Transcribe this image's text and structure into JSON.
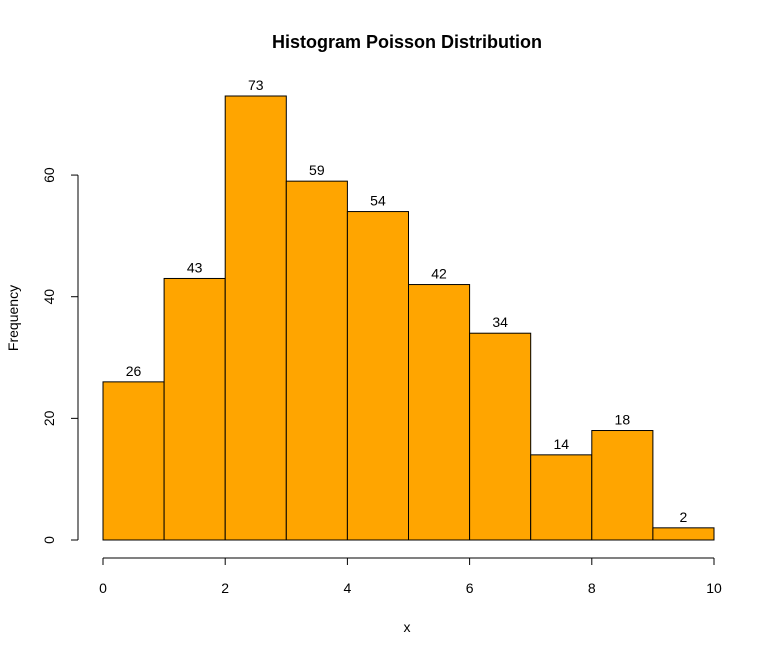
{
  "chart_data": {
    "type": "bar",
    "title": "Histogram Poisson Distribution",
    "xlabel": "x",
    "ylabel": "Frequency",
    "bins": [
      {
        "start": 0,
        "end": 1,
        "value": 26
      },
      {
        "start": 1,
        "end": 2,
        "value": 43
      },
      {
        "start": 2,
        "end": 3,
        "value": 73
      },
      {
        "start": 3,
        "end": 4,
        "value": 59
      },
      {
        "start": 4,
        "end": 5,
        "value": 54
      },
      {
        "start": 5,
        "end": 6,
        "value": 42
      },
      {
        "start": 6,
        "end": 7,
        "value": 34
      },
      {
        "start": 7,
        "end": 8,
        "value": 14
      },
      {
        "start": 8,
        "end": 9,
        "value": 18
      },
      {
        "start": 9,
        "end": 10,
        "value": 2
      }
    ],
    "xlim": [
      0,
      10
    ],
    "ylim": [
      0,
      73
    ],
    "xticks": [
      "0",
      "2",
      "4",
      "6",
      "8",
      "10"
    ],
    "yticks": [
      "0",
      "20",
      "40",
      "60"
    ],
    "bar_color": "#FFA500",
    "grid": false,
    "legend": "none"
  }
}
